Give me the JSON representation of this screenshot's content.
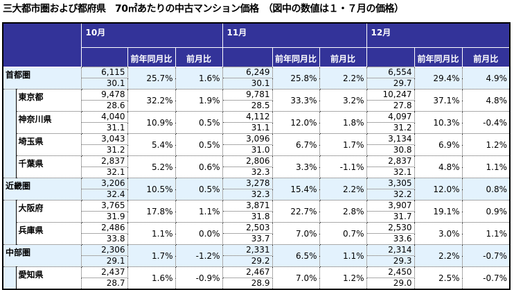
{
  "title": "三大都市圏および都府県　70㎡あたりの中古マンション価格　（図中の数値は１・７月の価格）",
  "months": [
    "10月",
    "11月",
    "12月"
  ],
  "col_yoy": "前年同月比",
  "col_mom": "前月比",
  "rows": [
    {
      "name": "首都圏",
      "region": true,
      "d": [
        [
          "6,115",
          "30.1",
          "25.7%",
          "1.6%"
        ],
        [
          "6,249",
          "30.1",
          "25.8%",
          "2.2%"
        ],
        [
          "6,554",
          "29.7",
          "29.4%",
          "4.9%"
        ]
      ]
    },
    {
      "name": "東京都",
      "region": false,
      "d": [
        [
          "9,478",
          "28.6",
          "32.2%",
          "1.9%"
        ],
        [
          "9,781",
          "28.5",
          "33.3%",
          "3.2%"
        ],
        [
          "10,247",
          "27.8",
          "37.1%",
          "4.8%"
        ]
      ]
    },
    {
      "name": "神奈川県",
      "region": false,
      "d": [
        [
          "4,040",
          "31.1",
          "10.9%",
          "0.5%"
        ],
        [
          "4,112",
          "31.1",
          "12.0%",
          "1.8%"
        ],
        [
          "4,097",
          "31.2",
          "10.3%",
          "-0.4%"
        ]
      ]
    },
    {
      "name": "埼玉県",
      "region": false,
      "d": [
        [
          "3,043",
          "31.2",
          "5.4%",
          "0.5%"
        ],
        [
          "3,096",
          "31.0",
          "6.7%",
          "1.7%"
        ],
        [
          "3,134",
          "30.8",
          "6.9%",
          "1.2%"
        ]
      ]
    },
    {
      "name": "千葉県",
      "region": false,
      "d": [
        [
          "2,837",
          "32.1",
          "5.2%",
          "0.6%"
        ],
        [
          "2,806",
          "32.3",
          "3.3%",
          "-1.1%"
        ],
        [
          "2,837",
          "32.1",
          "4.8%",
          "1.1%"
        ]
      ]
    },
    {
      "name": "近畿圏",
      "region": true,
      "d": [
        [
          "3,206",
          "32.4",
          "10.5%",
          "0.5%"
        ],
        [
          "3,278",
          "32.3",
          "15.4%",
          "2.2%"
        ],
        [
          "3,305",
          "32.2",
          "12.0%",
          "0.8%"
        ]
      ]
    },
    {
      "name": "大阪府",
      "region": false,
      "d": [
        [
          "3,765",
          "31.9",
          "17.8%",
          "1.1%"
        ],
        [
          "3,871",
          "31.8",
          "22.7%",
          "2.8%"
        ],
        [
          "3,907",
          "31.7",
          "19.1%",
          "0.9%"
        ]
      ]
    },
    {
      "name": "兵庫県",
      "region": false,
      "d": [
        [
          "2,486",
          "33.8",
          "1.1%",
          "0.0%"
        ],
        [
          "2,503",
          "33.7",
          "7.0%",
          "0.7%"
        ],
        [
          "2,530",
          "33.6",
          "3.0%",
          "1.1%"
        ]
      ]
    },
    {
      "name": "中部圏",
      "region": true,
      "d": [
        [
          "2,306",
          "29.1",
          "1.7%",
          "-1.2%"
        ],
        [
          "2,331",
          "29.2",
          "6.5%",
          "1.1%"
        ],
        [
          "2,314",
          "29.3",
          "2.2%",
          "-0.7%"
        ]
      ]
    },
    {
      "name": "愛知県",
      "region": false,
      "d": [
        [
          "2,437",
          "28.7",
          "1.6%",
          "-0.9%"
        ],
        [
          "2,467",
          "28.9",
          "7.0%",
          "1.2%"
        ],
        [
          "2,450",
          "29.0",
          "2.5%",
          "-0.7%"
        ]
      ]
    }
  ]
}
